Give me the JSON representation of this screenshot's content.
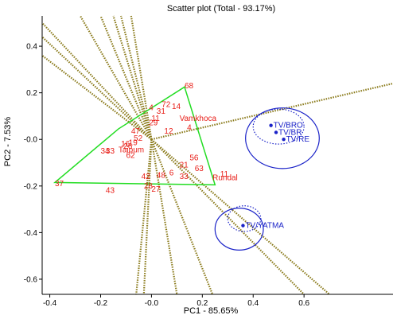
{
  "chart_data": {
    "type": "scatter",
    "title": "Scatter plot (Total - 93.17%)",
    "xlabel": "PC1 - 85.65%",
    "ylabel": "PC2 - 7.53%",
    "xlim": [
      -0.43,
      0.95
    ],
    "ylim": [
      -0.665,
      0.53
    ],
    "xticks": [
      -0.4,
      -0.2,
      -0.0,
      0.2,
      0.4,
      0.6
    ],
    "xtick_labels": [
      "-0.4",
      "-0.2",
      "-0.0",
      "0.2",
      "0.4",
      "0.6"
    ],
    "yticks": [
      0.4,
      0.2,
      -0.0,
      -0.2,
      -0.4,
      -0.6
    ],
    "ytick_labels": [
      "0.4",
      "0.2",
      "-0.0",
      "-0.2",
      "-0.4",
      "-0.6"
    ],
    "colors": {
      "genotype": "#e8201a",
      "environment": "#1a22c8",
      "polygon": "#22dd22",
      "rays": "#8a7a1a"
    },
    "polygon_vertices": [
      [
        0.13,
        0.225
      ],
      [
        0.25,
        -0.195
      ],
      [
        -0.38,
        -0.185
      ],
      [
        -0.13,
        0.045
      ]
    ],
    "genotypes": [
      {
        "label": "68",
        "x": 0.13,
        "y": 0.23
      },
      {
        "label": "4",
        "x": -0.01,
        "y": 0.135
      },
      {
        "label": "72",
        "x": 0.04,
        "y": 0.15
      },
      {
        "label": "14",
        "x": 0.08,
        "y": 0.14
      },
      {
        "label": "31",
        "x": 0.02,
        "y": 0.12
      },
      {
        "label": "11",
        "x": 0.0,
        "y": 0.09
      },
      {
        "label": "Vamkhoca",
        "x": 0.11,
        "y": 0.09
      },
      {
        "label": "29",
        "x": -0.01,
        "y": 0.07
      },
      {
        "label": "12",
        "x": 0.05,
        "y": 0.035
      },
      {
        "label": "4",
        "x": 0.14,
        "y": 0.05
      },
      {
        "label": "47",
        "x": -0.08,
        "y": 0.035
      },
      {
        "label": "52",
        "x": -0.07,
        "y": 0.005
      },
      {
        "label": "19",
        "x": -0.09,
        "y": -0.015
      },
      {
        "label": "16",
        "x": -0.12,
        "y": -0.02
      },
      {
        "label": "Taipum",
        "x": -0.13,
        "y": -0.045
      },
      {
        "label": "26",
        "x": -0.11,
        "y": -0.03
      },
      {
        "label": "34",
        "x": -0.2,
        "y": -0.05
      },
      {
        "label": "33",
        "x": -0.18,
        "y": -0.05
      },
      {
        "label": "62",
        "x": -0.1,
        "y": -0.07
      },
      {
        "label": "21",
        "x": 0.11,
        "y": -0.11
      },
      {
        "label": "56",
        "x": 0.15,
        "y": -0.08
      },
      {
        "label": "63",
        "x": 0.17,
        "y": -0.125
      },
      {
        "label": "11",
        "x": 0.27,
        "y": -0.15
      },
      {
        "label": "Rundal",
        "x": 0.24,
        "y": -0.165
      },
      {
        "label": "42",
        "x": -0.04,
        "y": -0.16
      },
      {
        "label": "48",
        "x": 0.02,
        "y": -0.155
      },
      {
        "label": "6",
        "x": 0.07,
        "y": -0.145
      },
      {
        "label": "33",
        "x": 0.11,
        "y": -0.16
      },
      {
        "label": "28",
        "x": -0.03,
        "y": -0.2
      },
      {
        "label": "27",
        "x": 0.0,
        "y": -0.215
      },
      {
        "label": "37",
        "x": -0.38,
        "y": -0.19
      },
      {
        "label": "43",
        "x": -0.18,
        "y": -0.22
      }
    ],
    "environments": [
      {
        "label": "TV/BRO",
        "x": 0.47,
        "y": 0.06
      },
      {
        "label": "TV/BR",
        "x": 0.49,
        "y": 0.03
      },
      {
        "label": "TV/RE",
        "x": 0.52,
        "y": 0.0
      },
      {
        "label": "TV/YATMA",
        "x": 0.36,
        "y": -0.37
      }
    ],
    "ellipses": [
      {
        "cx": 0.515,
        "cy": 0.005,
        "rx": 0.145,
        "ry": 0.13,
        "style": "solid"
      },
      {
        "cx": 0.5,
        "cy": 0.055,
        "rx": 0.1,
        "ry": 0.075,
        "style": "dotted"
      },
      {
        "cx": 0.345,
        "cy": -0.385,
        "rx": 0.095,
        "ry": 0.09,
        "style": "solid"
      },
      {
        "cx": 0.365,
        "cy": -0.34,
        "rx": 0.065,
        "ry": 0.055,
        "style": "dotted"
      }
    ],
    "rays": [
      {
        "to": [
          -0.43,
          0.5
        ]
      },
      {
        "to": [
          -0.43,
          0.44
        ]
      },
      {
        "to": [
          -0.43,
          0.36
        ]
      },
      {
        "to": [
          -0.28,
          0.53
        ]
      },
      {
        "to": [
          -0.2,
          0.53
        ]
      },
      {
        "to": [
          -0.15,
          0.53
        ]
      },
      {
        "to": [
          -0.12,
          0.53
        ]
      },
      {
        "to": [
          -0.08,
          0.53
        ]
      },
      {
        "to": [
          0.95,
          0.24
        ]
      },
      {
        "to": [
          -0.06,
          -0.665
        ]
      },
      {
        "to": [
          -0.03,
          -0.665
        ]
      },
      {
        "to": [
          0.1,
          -0.665
        ]
      },
      {
        "to": [
          0.24,
          -0.665
        ]
      },
      {
        "to": [
          0.6,
          -0.665
        ]
      },
      {
        "to": [
          0.7,
          -0.665
        ]
      }
    ]
  }
}
